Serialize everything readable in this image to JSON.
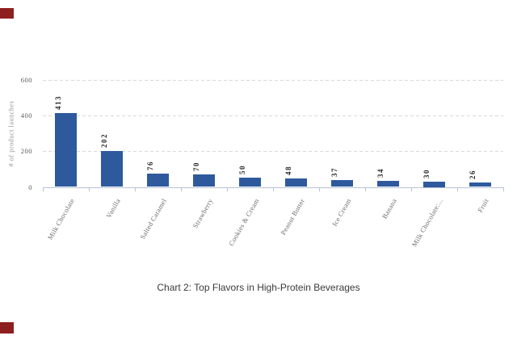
{
  "chart_data": {
    "type": "bar",
    "categories": [
      "Milk Chocolate",
      "Vanilla",
      "Salted Caramel",
      "Strawberry",
      "Cookies & Cream",
      "Peanut Butter",
      "Ice Cream",
      "Banana",
      "Milk Chocolate:...",
      "Fruit"
    ],
    "values": [
      413,
      202,
      76,
      70,
      50,
      48,
      37,
      34,
      30,
      26
    ],
    "caption": "Chart 2: Top Flavors in High-Protein Beverages",
    "title": "",
    "xlabel": "",
    "ylabel": "# of product launches",
    "ylim": [
      0,
      600
    ],
    "yticks": [
      0,
      200,
      400,
      600
    ],
    "grid": "horizontal-dashed",
    "legend": "none",
    "category_label_rotation_deg": 60,
    "value_label_rotation_deg": 90
  },
  "colors": {
    "bar": "#2e5a9d",
    "axis_line": "#b6c2d6",
    "gridline": "#d9d9d9",
    "y_tick_label": "#595959",
    "category_label": "#6b6b6b",
    "value_label": "#262626",
    "y_axis_label": "#8f8f8f",
    "caption": "#3a3a3a",
    "corner_marker": "#8e1f1f",
    "background": "#ffffff"
  },
  "decorations": {
    "corner_markers": [
      "top-left",
      "bottom-left"
    ]
  }
}
